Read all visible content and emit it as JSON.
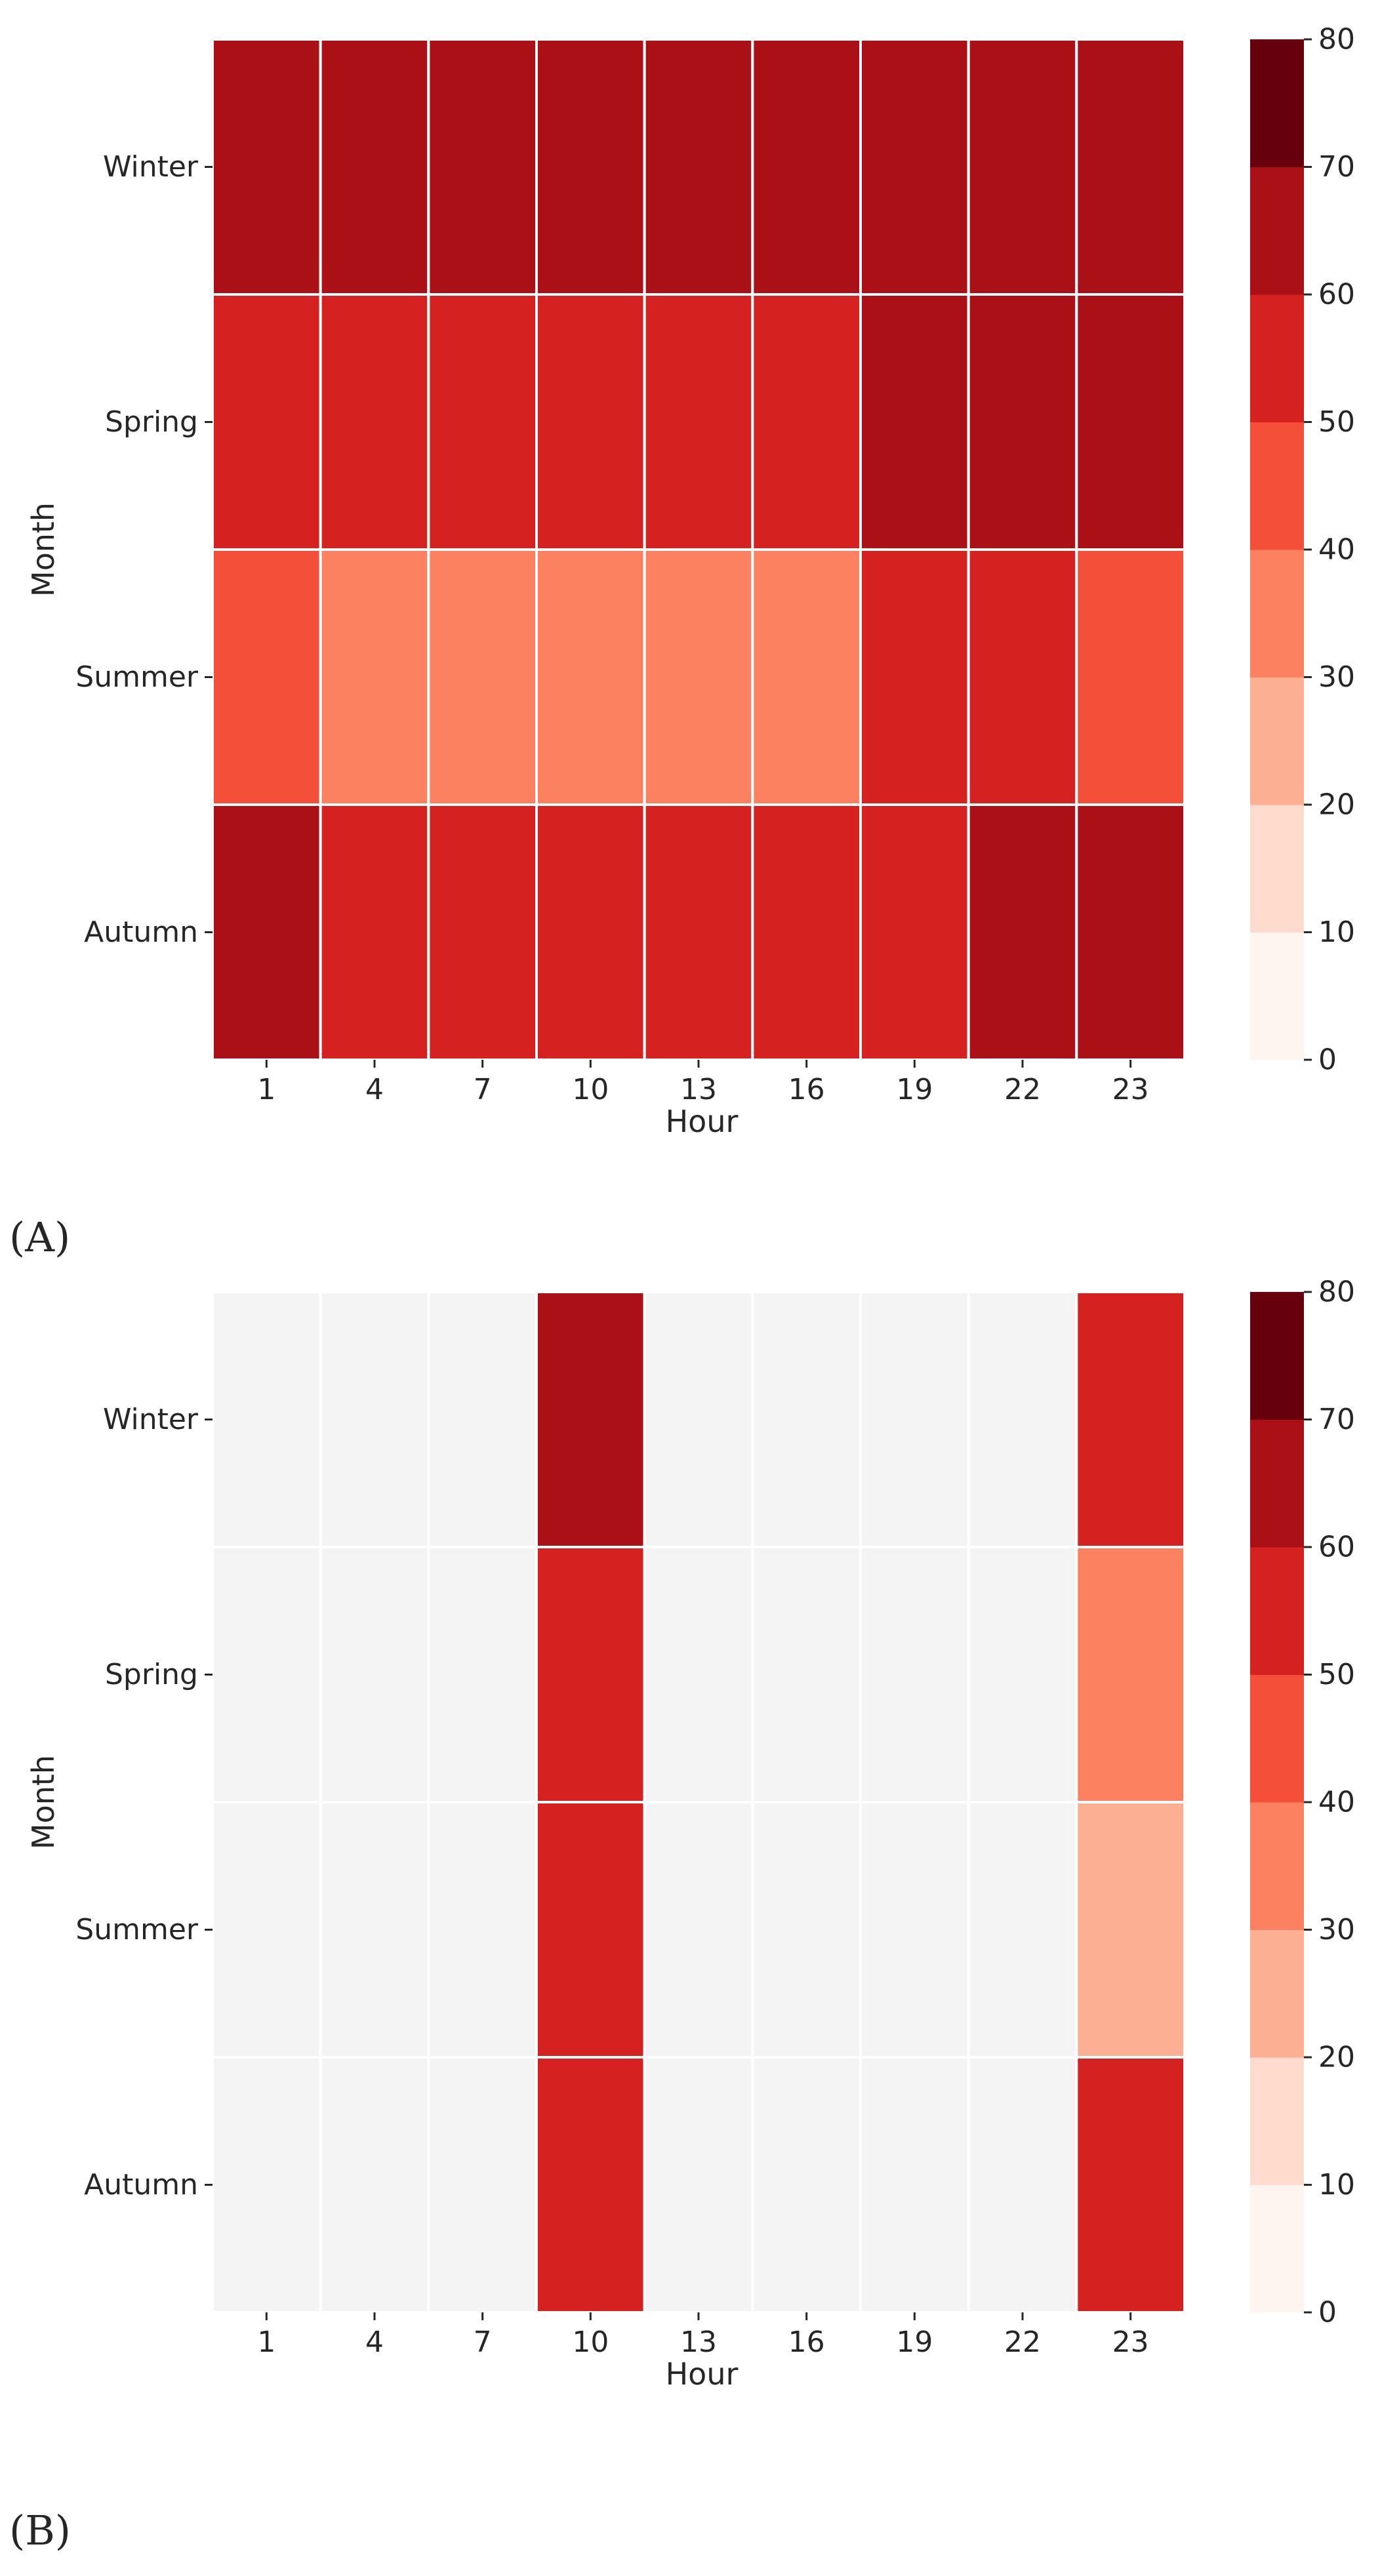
{
  "chart_data": [
    {
      "type": "heatmap",
      "panel_label": "(A)",
      "title": "",
      "xlabel": "Hour",
      "ylabel": "Month",
      "x": [
        "1",
        "4",
        "7",
        "10",
        "13",
        "16",
        "19",
        "22",
        "23"
      ],
      "y": [
        "Winter",
        "Spring",
        "Summer",
        "Autumn"
      ],
      "values": [
        [
          65,
          65,
          65,
          65,
          65,
          65,
          65,
          65,
          65
        ],
        [
          55,
          55,
          55,
          55,
          55,
          55,
          65,
          65,
          65
        ],
        [
          45,
          35,
          35,
          35,
          35,
          35,
          55,
          55,
          45
        ],
        [
          65,
          55,
          55,
          55,
          55,
          55,
          55,
          65,
          65
        ]
      ],
      "colorbar": {
        "range": [
          0,
          80
        ],
        "ticks": [
          "0",
          "10",
          "20",
          "30",
          "40",
          "50",
          "60",
          "70",
          "80"
        ],
        "colors": [
          "#fff5f0",
          "#fedbcc",
          "#fcaf93",
          "#fc8161",
          "#f44f39",
          "#d52221",
          "#aa1016",
          "#67000d"
        ]
      },
      "missing_color": "#f4f4f4"
    },
    {
      "type": "heatmap",
      "panel_label": "(B)",
      "title": "",
      "xlabel": "Hour",
      "ylabel": "Month",
      "x": [
        "1",
        "4",
        "7",
        "10",
        "13",
        "16",
        "19",
        "22",
        "23"
      ],
      "y": [
        "Winter",
        "Spring",
        "Summer",
        "Autumn"
      ],
      "values": [
        [
          null,
          null,
          null,
          65,
          null,
          null,
          null,
          null,
          55
        ],
        [
          null,
          null,
          null,
          55,
          null,
          null,
          null,
          null,
          35
        ],
        [
          null,
          null,
          null,
          55,
          null,
          null,
          null,
          null,
          25
        ],
        [
          null,
          null,
          null,
          55,
          null,
          null,
          null,
          null,
          55
        ]
      ],
      "colorbar": {
        "range": [
          0,
          80
        ],
        "ticks": [
          "0",
          "10",
          "20",
          "30",
          "40",
          "50",
          "60",
          "70",
          "80"
        ],
        "colors": [
          "#fff5f0",
          "#fedbcc",
          "#fcaf93",
          "#fc8161",
          "#f44f39",
          "#d52221",
          "#aa1016",
          "#67000d"
        ]
      },
      "missing_color": "#f4f4f4"
    }
  ]
}
